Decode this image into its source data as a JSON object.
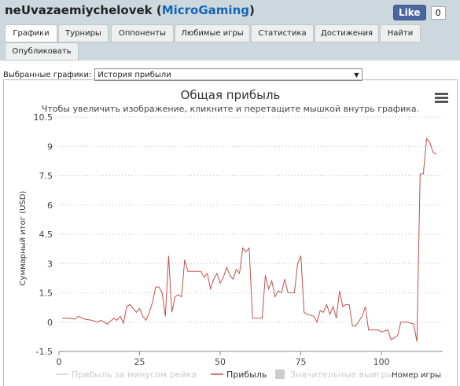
{
  "header": {
    "user": "neUvazaemiychelovek",
    "site": "MicroGaming",
    "like_label": "Like",
    "like_count": "0"
  },
  "tabs": [
    "Графики",
    "Турниры",
    "Оппоненты",
    "Любимые игры",
    "Статистика",
    "Достижения",
    "Найти",
    "Опубликовать"
  ],
  "selector": {
    "label": "Выбранные графики:",
    "value": "История прибыли"
  },
  "chart_data": {
    "type": "line",
    "title": "Общая прибыль",
    "subtitle": "Чтобы увеличить изображение, кликните и перетащите мышкой внутрь графика.",
    "y_label": "Суммарный итог (USD)",
    "x_label": "Номер игры",
    "x": [
      1,
      3,
      5,
      6,
      8,
      10,
      12,
      13,
      15,
      17,
      18,
      19,
      20,
      21,
      22,
      24,
      25,
      26,
      27,
      28,
      29,
      30,
      31,
      32,
      33,
      34,
      35,
      36,
      37,
      38,
      39,
      40,
      42,
      44,
      45,
      46,
      47,
      48,
      49,
      50,
      51,
      52,
      53,
      54,
      55,
      56,
      57,
      58,
      59,
      60,
      62,
      63,
      64,
      65,
      66,
      67,
      68,
      69,
      70,
      71,
      72,
      73,
      74,
      75,
      76,
      77,
      79,
      80,
      81,
      82,
      83,
      84,
      85,
      86,
      87,
      88,
      89,
      90,
      91,
      92,
      94,
      95,
      96,
      98,
      99,
      100,
      102,
      103,
      105,
      106,
      108,
      110,
      111,
      112,
      113,
      114,
      115,
      116,
      117
    ],
    "series": [
      {
        "name": "Прибыль",
        "color": "#c0504d",
        "values": [
          0.2,
          0.2,
          0.15,
          0.3,
          0.15,
          0.1,
          0.0,
          0.1,
          -0.1,
          0.2,
          0.1,
          0.3,
          -0.05,
          0.8,
          0.9,
          0.5,
          0.7,
          0.3,
          0.1,
          0.5,
          1.0,
          1.8,
          1.8,
          1.5,
          0.3,
          3.4,
          0.5,
          1.3,
          1.4,
          1.3,
          3.2,
          2.6,
          2.6,
          2.6,
          2.3,
          2.5,
          1.7,
          2.2,
          2.5,
          2.0,
          2.3,
          2.8,
          2.4,
          2.2,
          2.7,
          2.5,
          3.8,
          3.6,
          3.8,
          0.2,
          0.2,
          0.2,
          2.4,
          1.7,
          2.1,
          1.3,
          1.6,
          1.5,
          2.2,
          1.5,
          1.5,
          1.5,
          3.0,
          3.4,
          0.5,
          0.4,
          0.3,
          0.0,
          0.6,
          0.5,
          0.9,
          0.4,
          0.8,
          0.2,
          1.6,
          0.8,
          0.9,
          0.9,
          -0.2,
          -0.2,
          0.3,
          0.8,
          -0.4,
          -0.4,
          -0.4,
          -0.5,
          -0.4,
          -0.9,
          -0.7,
          0.0,
          0.0,
          -0.1,
          -1.0,
          7.6,
          7.6,
          9.4,
          9.2,
          8.7,
          8.6
        ]
      }
    ],
    "hidden_series": [
      {
        "name": "Прибыль за минусом рейка",
        "color": "#dddddd"
      },
      {
        "name": "Значительные выигры",
        "color": "#cccccc"
      }
    ],
    "xlim": [
      0,
      119
    ],
    "xticks": [
      0,
      25,
      50,
      75,
      100
    ],
    "ylim": [
      -1.5,
      10.5
    ],
    "yticks": [
      -1.5,
      0,
      1.5,
      3,
      4.5,
      6,
      7.5,
      9,
      10.5
    ],
    "grid": true
  }
}
